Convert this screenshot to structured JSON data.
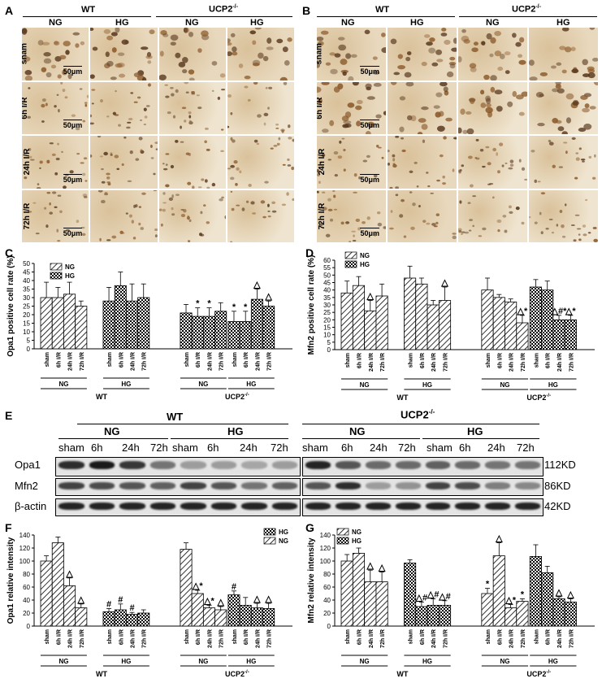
{
  "panelA": {
    "letter": "A",
    "wt": "WT",
    "ucp2": "UCP2",
    "ucp2_sup": "-/-",
    "ng": "NG",
    "hg": "HG",
    "rows": [
      "sham",
      "6h I/R",
      "24h I/R",
      "72h I/R"
    ],
    "scale": "50μm"
  },
  "panelB": {
    "letter": "B",
    "wt": "WT",
    "ucp2": "UCP2",
    "ucp2_sup": "-/-",
    "ng": "NG",
    "hg": "HG",
    "rows": [
      "sham",
      "6h I/R",
      "24h I/R",
      "72h I/R"
    ],
    "scale": "50μm"
  },
  "colors": {
    "stain_light": "#e8d8bd",
    "stain_mid": "#d9c19a",
    "cell_dark": "#8b5a2b",
    "bar_fill": "#ffffff",
    "bar_stroke": "#000000",
    "band": "#1a1a1a"
  },
  "panelC": {
    "letter": "C",
    "legend": [
      "NG",
      "HG"
    ],
    "ylabel": "Opa1 positive cell rate (%)",
    "yticks": [
      "0",
      "5",
      "10",
      "15",
      "20",
      "25",
      "30",
      "35",
      "40",
      "45",
      "50"
    ],
    "groups": [
      {
        "bottom": "NG",
        "top": "WT"
      },
      {
        "bottom": "HG",
        "top": "WT"
      },
      {
        "bottom": "NG",
        "top": "UCP2"
      },
      {
        "bottom": "HG",
        "top": "UCP2"
      }
    ]
  },
  "panelD": {
    "letter": "D",
    "legend": [
      "NG",
      "HG"
    ],
    "ylabel": "Mfn2 positive cell rate (%)",
    "yticks": [
      "0",
      "5",
      "10",
      "15",
      "20",
      "25",
      "30",
      "35",
      "40",
      "45",
      "50",
      "55",
      "60"
    ]
  },
  "panelE": {
    "letter": "E",
    "wt": "WT",
    "ucp2": "UCP2",
    "ucp2_sup": "-/-",
    "ng": "NG",
    "hg": "HG",
    "lanes": [
      "sham",
      "6h",
      "24h",
      "72h",
      "sham",
      "6h",
      "24h",
      "72h"
    ],
    "proteins": [
      "Opa1",
      "Mfn2",
      "β-actin"
    ],
    "sizes": [
      "112KD",
      "86KD",
      "42KD"
    ]
  },
  "panelF": {
    "letter": "F",
    "legend": [
      "HG",
      "NG"
    ],
    "ylabel": "Opa1 relative intensity",
    "yticks": [
      "0",
      "20",
      "40",
      "60",
      "80",
      "100",
      "120",
      "140"
    ]
  },
  "panelG": {
    "letter": "G",
    "legend": [
      "NG",
      "HG"
    ],
    "ylabel": "Mfn2 relative intensity",
    "yticks": [
      "0",
      "20",
      "40",
      "60",
      "80",
      "100",
      "120",
      "140"
    ]
  },
  "xcats": [
    "sham",
    "6h I/R",
    "24h I/R",
    "72h I/R"
  ],
  "group_labels": {
    "wt": "WT",
    "ucp2": "UCP2",
    "ucp2_sup": "-/-",
    "ng": "NG",
    "hg": "HG"
  },
  "chart_data": [
    {
      "panel": "C",
      "type": "bar",
      "ylabel": "Opa1 positive cell rate (%)",
      "ylim": [
        0,
        50
      ],
      "categories": [
        "sham",
        "6h I/R",
        "24h I/R",
        "72h I/R"
      ],
      "series": [
        {
          "name": "WT NG",
          "values": [
            30,
            30,
            32,
            25
          ],
          "errors": [
            9,
            6,
            7,
            3
          ],
          "marks": [
            "",
            "",
            "",
            ""
          ]
        },
        {
          "name": "WT HG",
          "values": [
            28,
            37,
            28,
            30
          ],
          "errors": [
            8,
            8,
            10,
            8
          ],
          "marks": [
            "",
            "",
            "",
            ""
          ]
        },
        {
          "name": "UCP2-/- NG",
          "values": [
            21,
            19,
            19,
            22
          ],
          "errors": [
            5,
            5,
            5,
            5
          ],
          "marks": [
            "",
            "*",
            "*",
            ""
          ]
        },
        {
          "name": "UCP2-/- HG",
          "values": [
            16,
            16,
            29,
            25
          ],
          "errors": [
            6,
            6,
            6,
            3
          ],
          "marks": [
            "*",
            "*",
            "△",
            "△"
          ]
        }
      ]
    },
    {
      "panel": "D",
      "type": "bar",
      "ylabel": "Mfn2 positive cell rate (%)",
      "ylim": [
        0,
        60
      ],
      "categories": [
        "sham",
        "6h I/R",
        "24h I/R",
        "72h I/R"
      ],
      "series": [
        {
          "name": "WT NG",
          "values": [
            38,
            43,
            26,
            36
          ],
          "errors": [
            8,
            6,
            7,
            8
          ],
          "marks": [
            "",
            "",
            "△",
            ""
          ]
        },
        {
          "name": "WT HG",
          "values": [
            48,
            44,
            30,
            33
          ],
          "errors": [
            8,
            4,
            3,
            9
          ],
          "marks": [
            "",
            "",
            "",
            "△"
          ]
        },
        {
          "name": "UCP2-/- NG",
          "values": [
            40,
            35,
            32,
            18
          ],
          "errors": [
            8,
            2,
            2,
            5
          ],
          "marks": [
            "",
            "",
            "",
            "△*"
          ]
        },
        {
          "name": "UCP2-/- HG",
          "values": [
            42,
            40,
            20,
            20
          ],
          "errors": [
            5,
            6,
            3,
            3
          ],
          "marks": [
            "",
            "",
            "△#*",
            "△*"
          ]
        }
      ]
    },
    {
      "panel": "F",
      "type": "bar",
      "ylabel": "Opa1 relative intensity",
      "ylim": [
        0,
        140
      ],
      "categories": [
        "sham",
        "6h I/R",
        "24h I/R",
        "72h I/R"
      ],
      "series": [
        {
          "name": "WT NG",
          "values": [
            100,
            128,
            62,
            28
          ],
          "errors": [
            8,
            9,
            12,
            6
          ],
          "marks": [
            "",
            "",
            "△",
            "△"
          ]
        },
        {
          "name": "WT HG",
          "values": [
            22,
            25,
            18,
            20
          ],
          "errors": [
            5,
            9,
            3,
            5
          ],
          "marks": [
            "#",
            "#",
            "#",
            ""
          ]
        },
        {
          "name": "UCP2-/- NG",
          "values": [
            118,
            50,
            28,
            25
          ],
          "errors": [
            10,
            5,
            4,
            5
          ],
          "marks": [
            "",
            "△*",
            "△*",
            "△"
          ]
        },
        {
          "name": "UCP2-/- HG",
          "values": [
            48,
            32,
            28,
            27
          ],
          "errors": [
            6,
            12,
            7,
            8
          ],
          "marks": [
            "#",
            "",
            "△",
            "△"
          ]
        }
      ]
    },
    {
      "panel": "G",
      "type": "bar",
      "ylabel": "Mfn2 relative intensity",
      "ylim": [
        0,
        140
      ],
      "categories": [
        "sham",
        "6h I/R",
        "24h I/R",
        "72h I/R"
      ],
      "series": [
        {
          "name": "WT NG",
          "values": [
            100,
            112,
            68,
            68
          ],
          "errors": [
            10,
            8,
            18,
            15
          ],
          "marks": [
            "",
            "",
            "△",
            "△"
          ]
        },
        {
          "name": "WT HG",
          "values": [
            97,
            30,
            32,
            32
          ],
          "errors": [
            5,
            7,
            10,
            7
          ],
          "marks": [
            "",
            "△#",
            "△#",
            "△#"
          ]
        },
        {
          "name": "UCP2-/- NG",
          "values": [
            50,
            108,
            28,
            38
          ],
          "errors": [
            8,
            20,
            5,
            4
          ],
          "marks": [
            "*",
            "△",
            "△*",
            "*"
          ]
        },
        {
          "name": "UCP2-/- HG",
          "values": [
            107,
            82,
            42,
            37
          ],
          "errors": [
            18,
            10,
            3,
            5
          ],
          "marks": [
            "",
            "",
            "△",
            "△"
          ]
        }
      ]
    }
  ]
}
